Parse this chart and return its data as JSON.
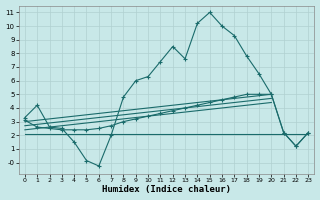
{
  "xlabel": "Humidex (Indice chaleur)",
  "bg_color": "#c8e8e8",
  "grid_color": "#b0d0d0",
  "line_color": "#1a6b6b",
  "xlim": [
    -0.5,
    23.5
  ],
  "ylim": [
    -0.8,
    11.5
  ],
  "ytick_vals": [
    0,
    1,
    2,
    3,
    4,
    5,
    6,
    7,
    8,
    9,
    10,
    11
  ],
  "ytick_labels": [
    "-0",
    "1",
    "2",
    "3",
    "4",
    "5",
    "6",
    "7",
    "8",
    "9",
    "10",
    "11"
  ],
  "xtick_vals": [
    0,
    1,
    2,
    3,
    4,
    5,
    6,
    7,
    8,
    9,
    10,
    11,
    12,
    13,
    14,
    15,
    16,
    17,
    18,
    19,
    20,
    21,
    22,
    23
  ],
  "main_x": [
    0,
    1,
    2,
    3,
    4,
    5,
    6,
    7,
    8,
    9,
    10,
    11,
    12,
    13,
    14,
    15,
    16,
    17,
    18,
    19,
    20,
    21,
    22,
    23
  ],
  "main_y": [
    3.3,
    4.2,
    2.6,
    2.5,
    1.5,
    0.15,
    -0.25,
    2.0,
    4.8,
    6.0,
    6.3,
    7.4,
    8.5,
    7.6,
    10.2,
    11.0,
    10.0,
    9.3,
    7.8,
    6.5,
    5.0,
    2.2,
    1.2,
    2.2
  ],
  "band_x": [
    0,
    1,
    2,
    3,
    4,
    5,
    6,
    7,
    8,
    9,
    10,
    11,
    12,
    13,
    14,
    15,
    16,
    17,
    18,
    19,
    20,
    21,
    22,
    23
  ],
  "band_y": [
    3.1,
    2.6,
    2.5,
    2.4,
    2.4,
    2.4,
    2.5,
    2.7,
    3.0,
    3.2,
    3.4,
    3.6,
    3.8,
    4.0,
    4.2,
    4.4,
    4.6,
    4.8,
    5.0,
    5.0,
    5.0,
    2.2,
    1.2,
    2.2
  ],
  "ref_lines": [
    {
      "x": [
        0,
        20
      ],
      "y": [
        3.0,
        5.0
      ]
    },
    {
      "x": [
        0,
        20
      ],
      "y": [
        2.7,
        4.7
      ]
    },
    {
      "x": [
        0,
        20
      ],
      "y": [
        2.4,
        4.4
      ]
    },
    {
      "x": [
        0,
        23
      ],
      "y": [
        2.1,
        2.1
      ]
    }
  ]
}
